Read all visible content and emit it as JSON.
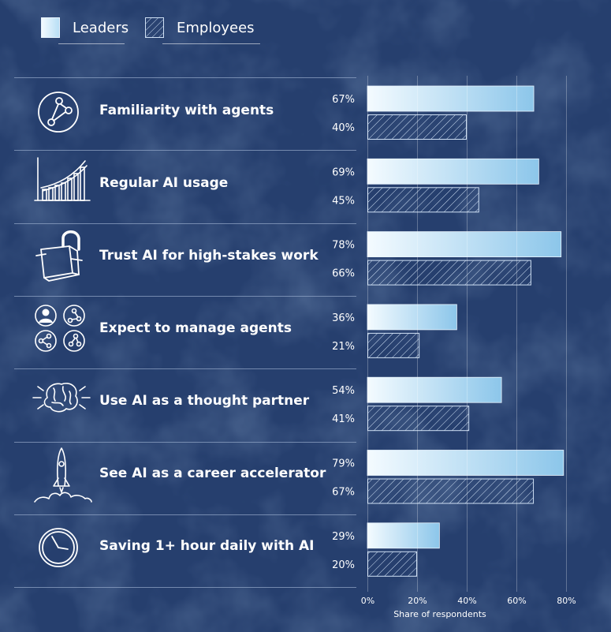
{
  "legend": {
    "leaders": "Leaders",
    "employees": "Employees"
  },
  "colors": {
    "background": "#263f6e",
    "leaders_start": "#f4fbff",
    "leaders_end": "#8cc6ea",
    "employees_stroke": "#cfe0f4",
    "divider": "#8fa3c4"
  },
  "chart_data": {
    "type": "bar",
    "orientation": "horizontal",
    "categories": [
      "Familiarity with agents",
      "Regular AI usage",
      "Trust AI for high-stakes work",
      "Expect to manage agents",
      "Use AI as a thought partner",
      "See AI as a career accelerator",
      "Saving 1+ hour daily with AI"
    ],
    "series": [
      {
        "name": "Leaders",
        "values": [
          67,
          69,
          78,
          36,
          54,
          79,
          29
        ],
        "labels": [
          "67%",
          "69%",
          "78%",
          "36%",
          "54%",
          "79%",
          "29%"
        ]
      },
      {
        "name": "Employees",
        "values": [
          40,
          45,
          66,
          21,
          41,
          67,
          20
        ],
        "labels": [
          "40%",
          "45%",
          "66%",
          "21%",
          "41%",
          "67%",
          "20%"
        ]
      }
    ],
    "xlabel": "Share of respondents",
    "xlim": [
      0,
      80
    ],
    "xticks": [
      0,
      20,
      40,
      60,
      80
    ],
    "xtick_labels": [
      "0%",
      "20%",
      "40%",
      "60%",
      "80%"
    ],
    "grid": false,
    "legend_position": "top-left",
    "row_icons": [
      "agents-network-icon",
      "growth-chart-icon",
      "unlocked-padlock-icon",
      "people-agents-icon",
      "brain-icon",
      "rocket-icon",
      "clock-icon"
    ]
  }
}
